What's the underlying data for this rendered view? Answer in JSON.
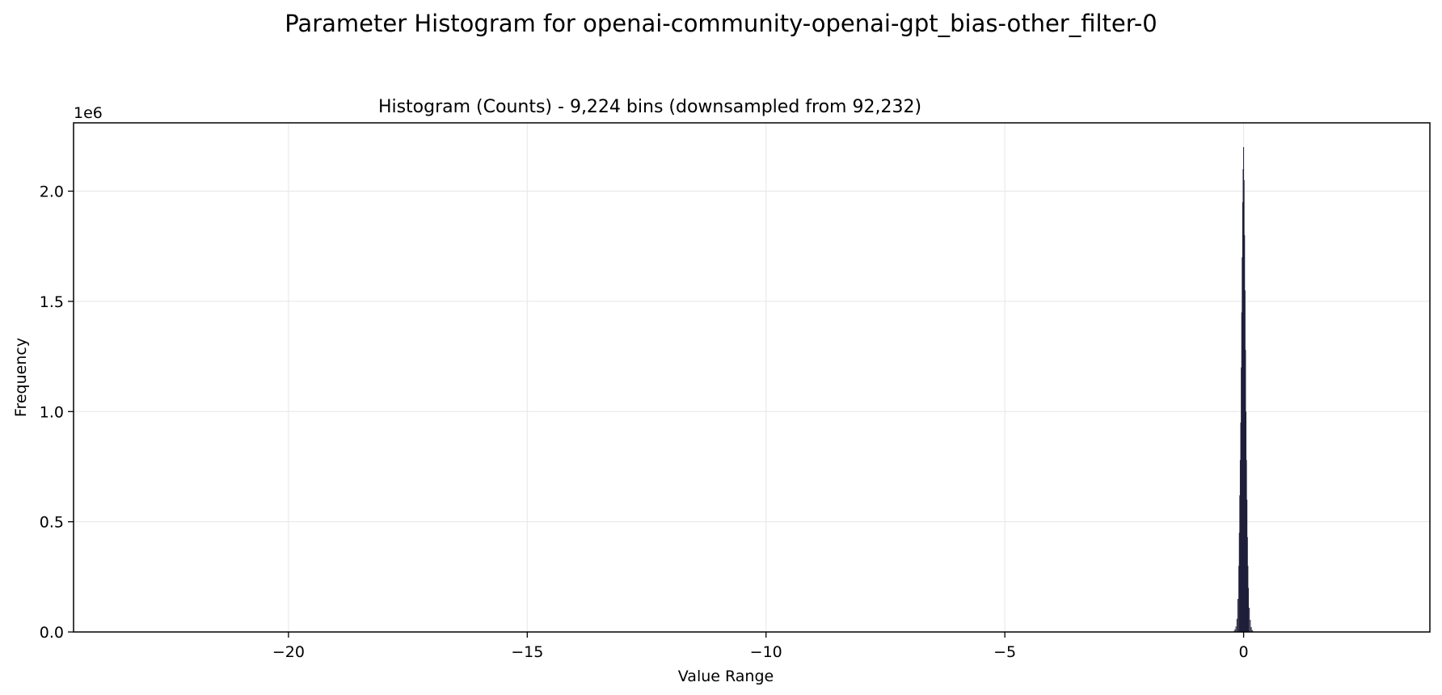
{
  "figure": {
    "suptitle": "Parameter Histogram for openai-community-openai-gpt_bias-other_filter-0"
  },
  "chart_data": {
    "type": "bar",
    "title": "Histogram (Counts) - 9,224 bins (downsampled from 92,232)",
    "xlabel": "Value Range",
    "ylabel": "Frequency",
    "y_offset_label": "1e6",
    "xlim": [
      -24.5,
      3.9
    ],
    "ylim": [
      0,
      2310000
    ],
    "x_ticks": [
      -20,
      -15,
      -10,
      -5,
      0
    ],
    "x_tick_labels": [
      "−20",
      "−15",
      "−10",
      "−5",
      "0"
    ],
    "y_ticks": [
      0,
      500000,
      1000000,
      1500000,
      2000000
    ],
    "y_tick_labels": [
      "0.0",
      "0.5",
      "1.0",
      "1.5",
      "2.0"
    ],
    "grid": true,
    "bar_color": "#1f1f3a",
    "bins": {
      "x": [
        -0.2,
        -0.18,
        -0.16,
        -0.14,
        -0.12,
        -0.1,
        -0.09,
        -0.08,
        -0.07,
        -0.06,
        -0.05,
        -0.04,
        -0.03,
        -0.02,
        -0.01,
        0.0,
        0.01,
        0.02,
        0.03,
        0.04,
        0.05,
        0.06,
        0.07,
        0.08,
        0.09,
        0.1,
        0.12,
        0.14,
        0.16,
        0.18,
        0.2
      ],
      "counts": [
        5000,
        12000,
        25000,
        60000,
        150000,
        300000,
        450000,
        620000,
        780000,
        950000,
        1200000,
        1450000,
        1700000,
        1950000,
        2100000,
        2200000,
        2050000,
        1800000,
        1550000,
        1280000,
        1000000,
        780000,
        600000,
        430000,
        300000,
        200000,
        110000,
        55000,
        22000,
        9000,
        3000
      ]
    }
  }
}
